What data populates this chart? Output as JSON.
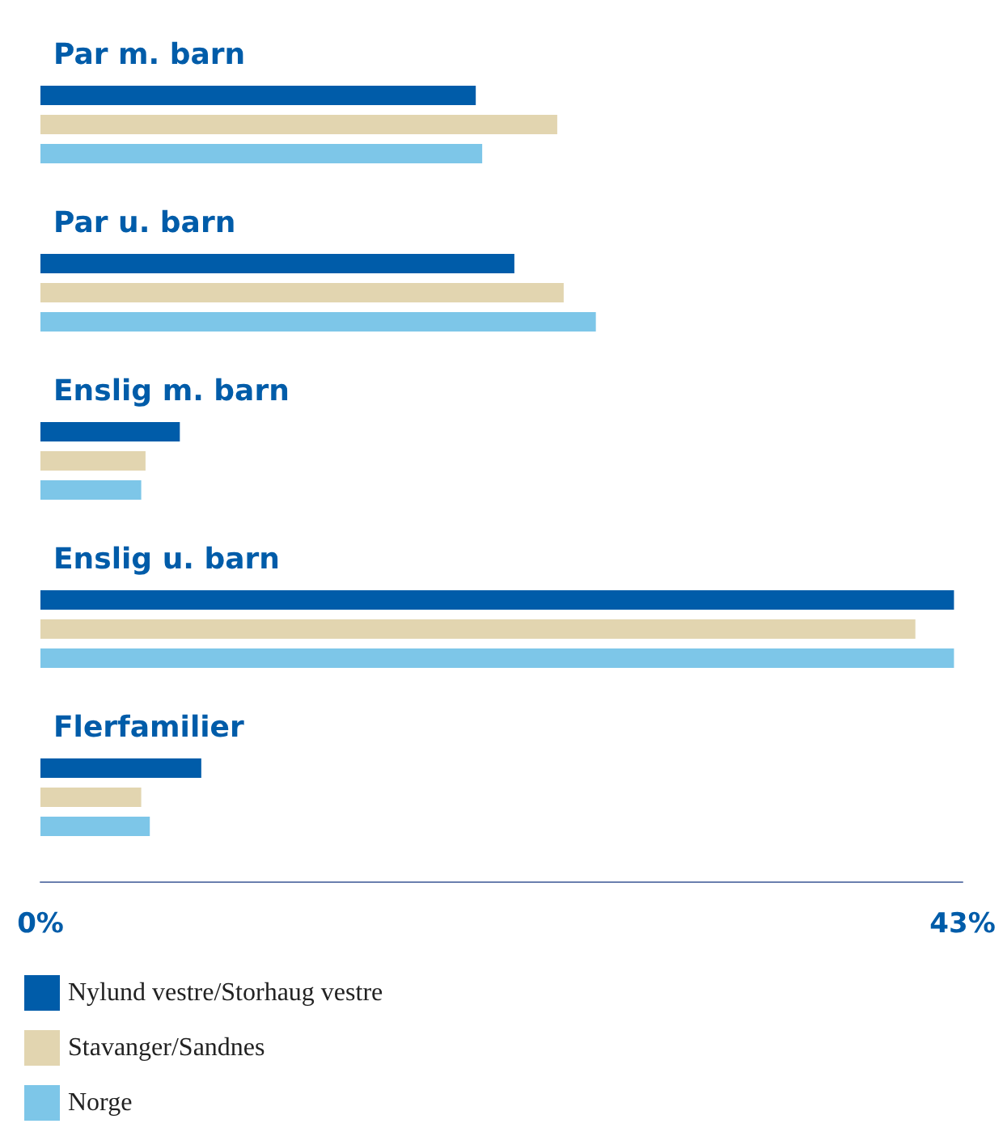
{
  "chart_data": {
    "type": "bar",
    "orientation": "horizontal",
    "categories": [
      "Par m. barn",
      "Par u. barn",
      "Enslig m. barn",
      "Enslig u. barn",
      "Flerfamilier"
    ],
    "series": [
      {
        "name": "Nylund vestre/Storhaug vestre",
        "color": "#005ca9",
        "values": [
          20.3,
          22.1,
          6.5,
          42.6,
          7.5
        ]
      },
      {
        "name": "Stavanger/Sandnes",
        "color": "#e2d5b0",
        "values": [
          24.1,
          24.4,
          4.9,
          40.8,
          4.7
        ]
      },
      {
        "name": "Norge",
        "color": "#7dc6e8",
        "values": [
          20.6,
          25.9,
          4.7,
          42.6,
          5.1
        ]
      }
    ],
    "xlim": [
      0,
      43
    ],
    "xticks": [
      {
        "value": 0,
        "label": "0%"
      },
      {
        "value": 43,
        "label": "43%"
      }
    ],
    "legend": "bottom"
  }
}
